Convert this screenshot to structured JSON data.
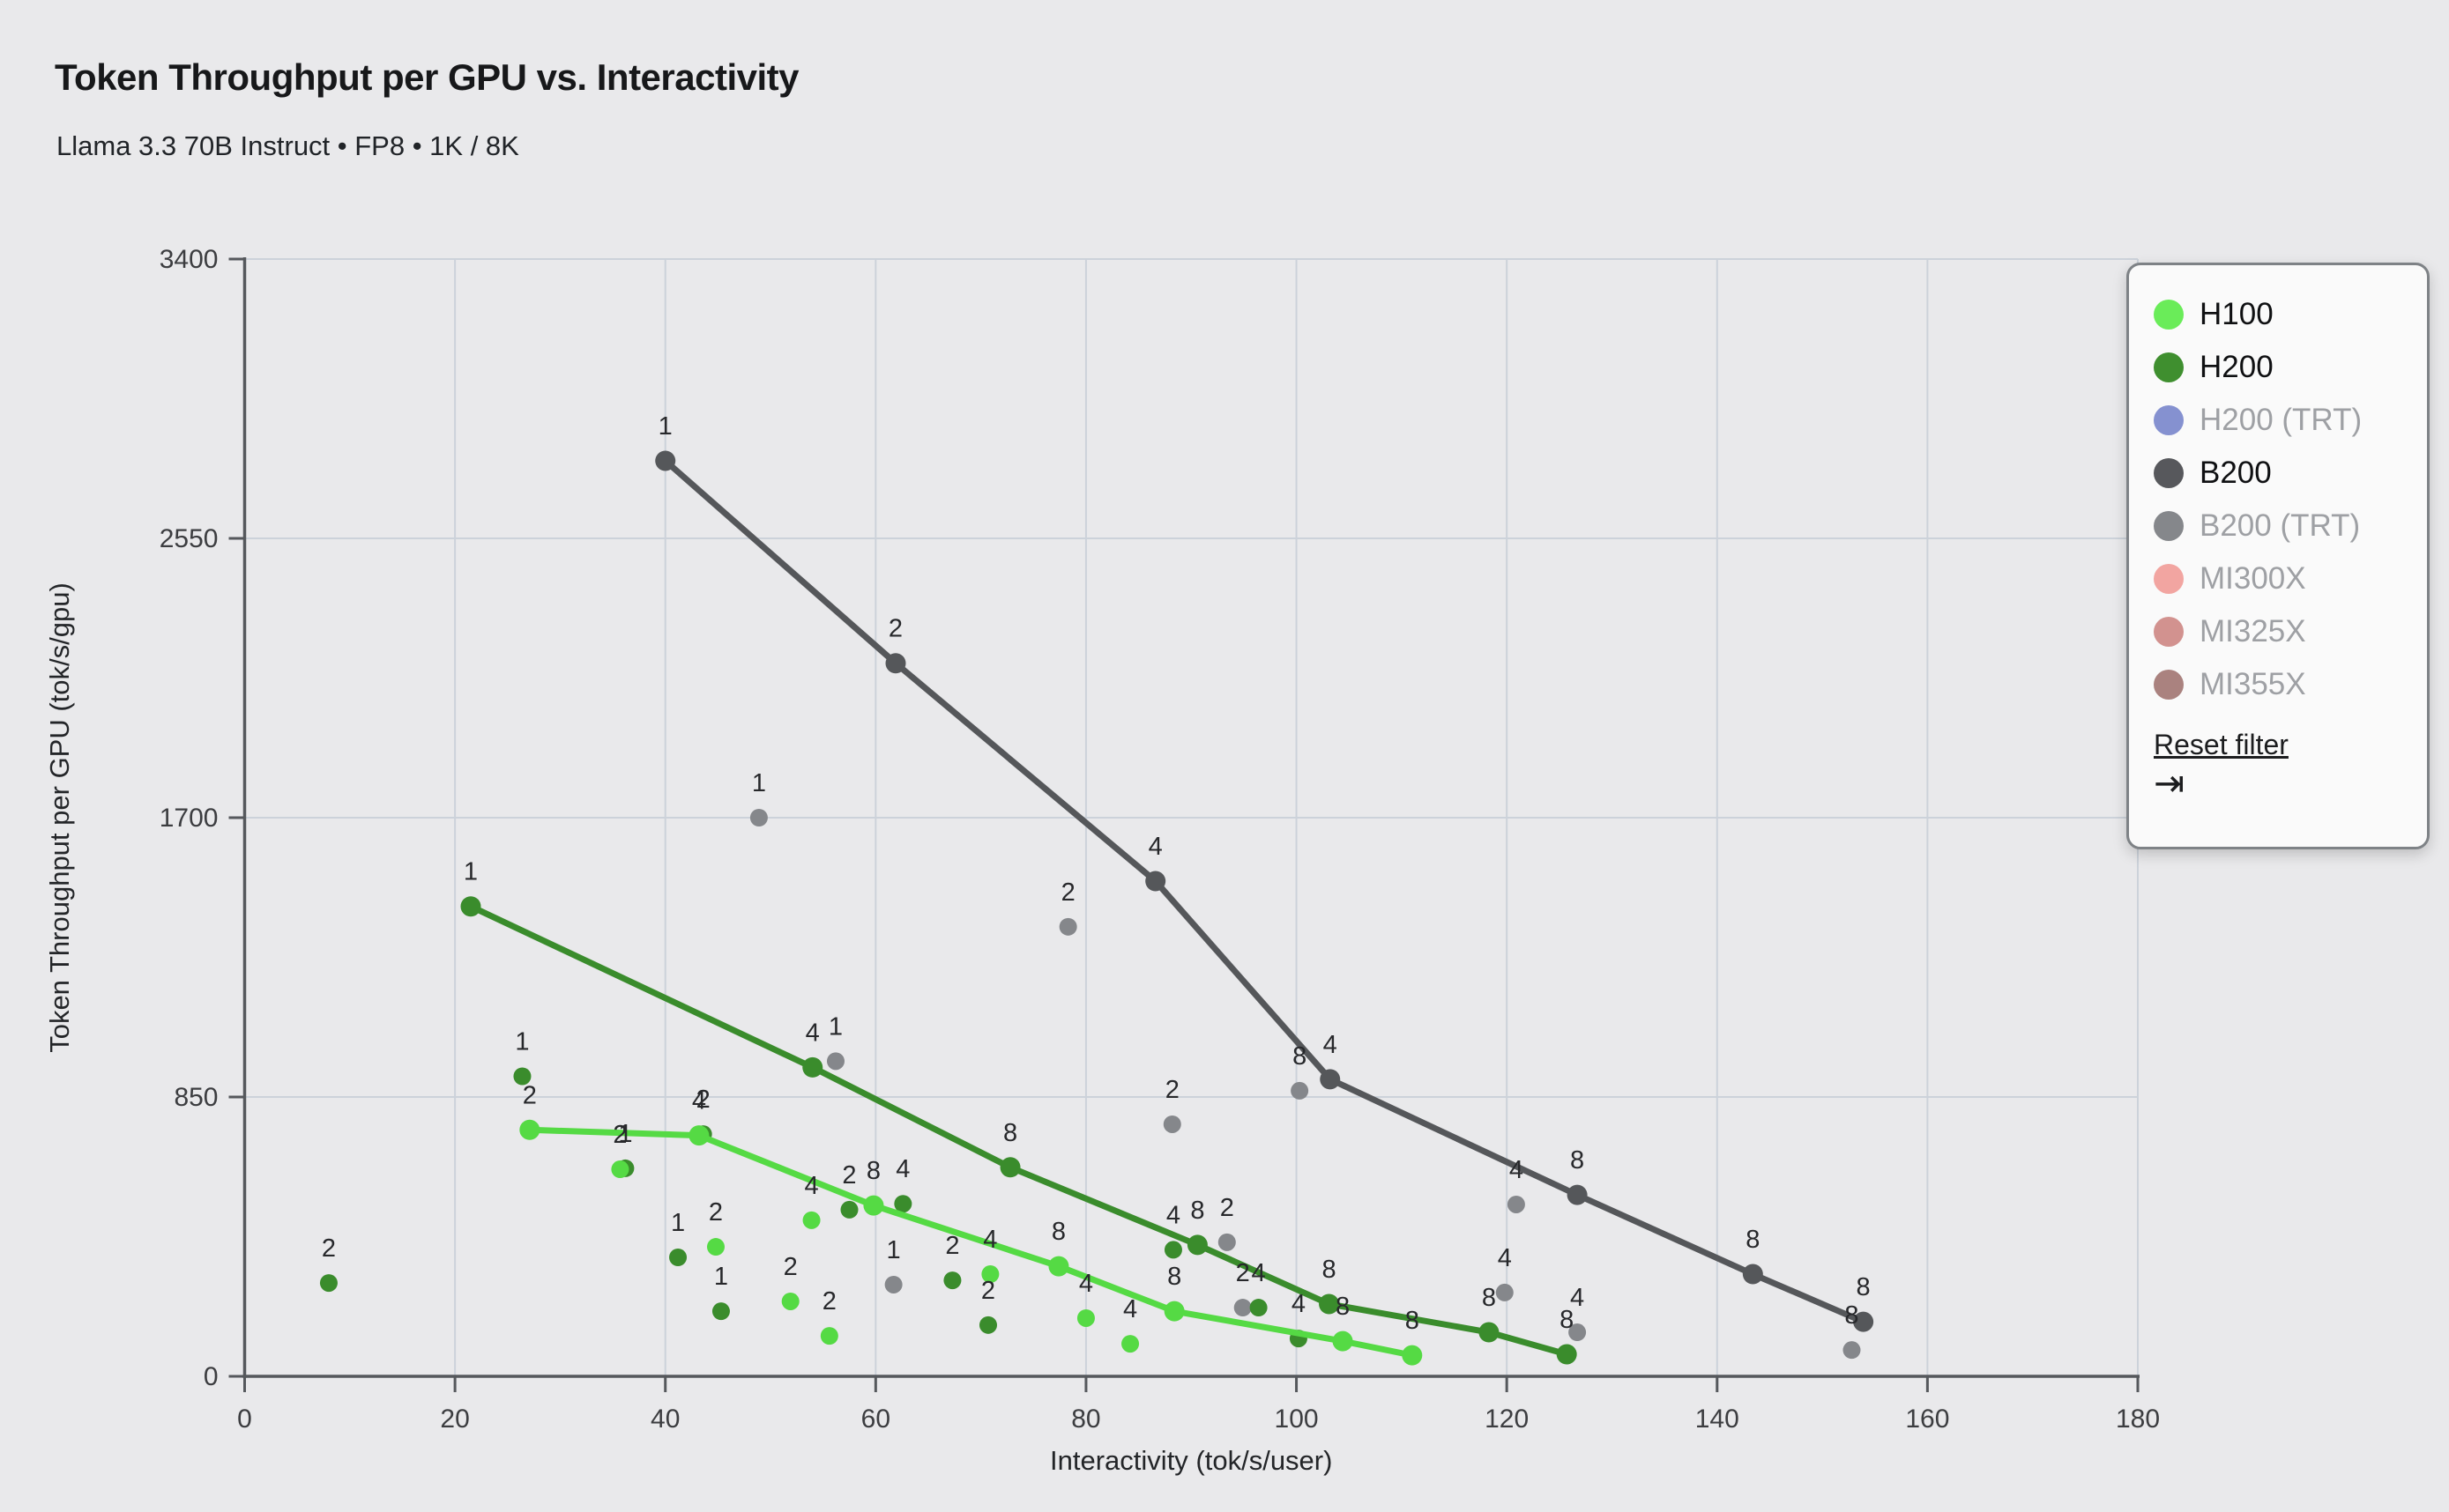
{
  "title": "Token Throughput per GPU vs. Interactivity",
  "subtitle": "Llama 3.3 70B Instruct • FP8 • 1K / 8K",
  "chart_data": {
    "type": "scatter",
    "title": "Token Throughput per GPU vs. Interactivity",
    "xlabel": "Interactivity (tok/s/user)",
    "ylabel": "Token Throughput per GPU (tok/s/gpu)",
    "xlim": [
      0,
      180
    ],
    "ylim": [
      0,
      3400
    ],
    "xticks": [
      0,
      20,
      40,
      60,
      80,
      100,
      120,
      140,
      160,
      180
    ],
    "yticks": [
      0,
      850,
      1700,
      2550,
      3400
    ],
    "grid": true,
    "legend_position": "top-right",
    "series": [
      {
        "name": "B200 (TRT)",
        "color": "#85878b",
        "line_points": [],
        "scatter_points": [
          {
            "x": 48.9,
            "y": 1700,
            "label": "1"
          },
          {
            "x": 56.2,
            "y": 959,
            "label": "1"
          },
          {
            "x": 61.7,
            "y": 279,
            "label": "1"
          },
          {
            "x": 78.3,
            "y": 1368,
            "label": "2"
          },
          {
            "x": 88.2,
            "y": 767,
            "label": "2"
          },
          {
            "x": 93.4,
            "y": 408,
            "label": "2"
          },
          {
            "x": 94.9,
            "y": 209,
            "label": "2"
          },
          {
            "x": 100.3,
            "y": 869,
            "label": "8"
          },
          {
            "x": 119.8,
            "y": 255,
            "label": "4"
          },
          {
            "x": 120.9,
            "y": 523,
            "label": "4"
          },
          {
            "x": 126.7,
            "y": 134,
            "label": "4"
          },
          {
            "x": 152.8,
            "y": 80,
            "label": "8"
          }
        ]
      },
      {
        "name": "B200",
        "color": "#55575a",
        "line_points": [
          {
            "x": 40.0,
            "y": 2786,
            "label": "1"
          },
          {
            "x": 61.9,
            "y": 2170,
            "label": "2"
          },
          {
            "x": 86.6,
            "y": 1507,
            "label": "4"
          },
          {
            "x": 103.2,
            "y": 904,
            "label": "4"
          },
          {
            "x": 126.7,
            "y": 552,
            "label": "8"
          },
          {
            "x": 143.4,
            "y": 311,
            "label": "8"
          },
          {
            "x": 153.9,
            "y": 166,
            "label": "8"
          }
        ],
        "scatter_points": []
      },
      {
        "name": "H200",
        "color": "#3a8c2c",
        "line_points": [
          {
            "x": 21.5,
            "y": 1430,
            "label": "1"
          },
          {
            "x": 54.0,
            "y": 940,
            "label": "4"
          },
          {
            "x": 72.8,
            "y": 636,
            "label": "8"
          },
          {
            "x": 90.6,
            "y": 400,
            "label": "8"
          },
          {
            "x": 103.1,
            "y": 220,
            "label": "8"
          },
          {
            "x": 118.3,
            "y": 134,
            "label": "8"
          },
          {
            "x": 125.7,
            "y": 67,
            "label": "8"
          }
        ],
        "scatter_points": [
          {
            "x": 8.0,
            "y": 284,
            "label": "2"
          },
          {
            "x": 26.4,
            "y": 913,
            "label": "1"
          },
          {
            "x": 36.2,
            "y": 633,
            "label": "1"
          },
          {
            "x": 41.2,
            "y": 362,
            "label": "1"
          },
          {
            "x": 43.6,
            "y": 737,
            "label": "2"
          },
          {
            "x": 45.3,
            "y": 198,
            "label": "1"
          },
          {
            "x": 57.5,
            "y": 507,
            "label": "2"
          },
          {
            "x": 62.6,
            "y": 525,
            "label": "4"
          },
          {
            "x": 67.3,
            "y": 292,
            "label": "2"
          },
          {
            "x": 70.7,
            "y": 156,
            "label": "2"
          },
          {
            "x": 88.3,
            "y": 385,
            "label": "4"
          },
          {
            "x": 96.4,
            "y": 209,
            "label": "4"
          },
          {
            "x": 100.2,
            "y": 115,
            "label": "4"
          }
        ]
      },
      {
        "name": "H100",
        "color": "#55da44",
        "line_points": [
          {
            "x": 27.1,
            "y": 750,
            "label": "2"
          },
          {
            "x": 43.2,
            "y": 733,
            "label": "4"
          },
          {
            "x": 59.8,
            "y": 520,
            "label": "8"
          },
          {
            "x": 77.4,
            "y": 335,
            "label": "8"
          },
          {
            "x": 88.4,
            "y": 198,
            "label": "8"
          },
          {
            "x": 104.4,
            "y": 107,
            "label": "8"
          },
          {
            "x": 111.0,
            "y": 64,
            "label": "8"
          }
        ],
        "scatter_points": [
          {
            "x": 35.7,
            "y": 630,
            "label": "2"
          },
          {
            "x": 44.8,
            "y": 394,
            "label": "2"
          },
          {
            "x": 51.9,
            "y": 228,
            "label": "2"
          },
          {
            "x": 53.9,
            "y": 475,
            "label": "4"
          },
          {
            "x": 55.6,
            "y": 123,
            "label": "2"
          },
          {
            "x": 70.9,
            "y": 311,
            "label": "4"
          },
          {
            "x": 80.0,
            "y": 177,
            "label": "4"
          },
          {
            "x": 84.2,
            "y": 99,
            "label": "4"
          }
        ]
      }
    ]
  },
  "legend": {
    "items": [
      {
        "label": "H100",
        "color": "#6aec59",
        "active": true
      },
      {
        "label": "H200",
        "color": "#3f8f2f",
        "active": true
      },
      {
        "label": "H200 (TRT)",
        "color": "#8591d0",
        "active": false
      },
      {
        "label": "B200",
        "color": "#57585c",
        "active": true
      },
      {
        "label": "B200 (TRT)",
        "color": "#85878b",
        "active": false
      },
      {
        "label": "MI300X",
        "color": "#f2a5a1",
        "active": false
      },
      {
        "label": "MI325X",
        "color": "#d2928f",
        "active": false
      },
      {
        "label": "MI355X",
        "color": "#aa827f",
        "active": false
      }
    ],
    "reset_label": "Reset filter",
    "reset_icon": "⇥"
  },
  "colors": {
    "background": "#e9e9eb",
    "gridline": "#ccd2da",
    "axis": "#55585c",
    "tick_text": "#3c3d40",
    "point_label": "#27282b"
  }
}
